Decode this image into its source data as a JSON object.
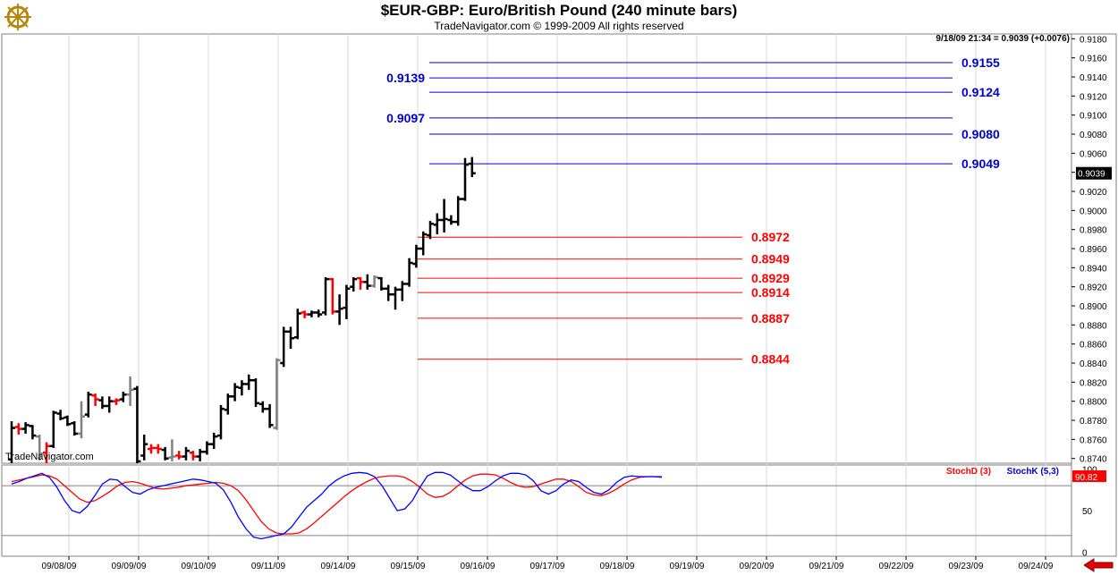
{
  "header": {
    "title": "$EUR-GBP:  Euro/British Pound  (240 minute bars)",
    "subtitle": "TradeNavigator.com © 1999-2009 All rights reserved",
    "readout": "9/18/09 21:34 = 0.9039 (+0.0076)",
    "watermark": "TradeNavigator.com",
    "last_price_label": "0.9039"
  },
  "colors": {
    "up_bar": "#000000",
    "inside_bar": "#ff0000",
    "neutral_bar": "#808080",
    "fib_extension": "#0000cc",
    "retracement": "#ff0000",
    "stochK": "#0000ff",
    "stochD": "#ff0000"
  },
  "chart_data": [
    {
      "type": "ohlc",
      "title": "$EUR-GBP:  Euro/British Pound  (240 minute bars)",
      "ylim": [
        0.8735,
        0.9185
      ],
      "y_ticks": [
        "0.9180",
        "0.9160",
        "0.9140",
        "0.9120",
        "0.9100",
        "0.9080",
        "0.9060",
        "0.9040",
        "0.9020",
        "0.9000",
        "0.8980",
        "0.8960",
        "0.8940",
        "0.8920",
        "0.8900",
        "0.8880",
        "0.8860",
        "0.8840",
        "0.8820",
        "0.8800",
        "0.8780",
        "0.8760",
        "0.8740"
      ],
      "x_labels": [
        "09/08/09",
        "09/09/09",
        "09/10/09",
        "09/11/09",
        "09/14/09",
        "09/15/09",
        "09/16/09",
        "09/17/09",
        "09/18/09",
        "09/19/09",
        "09/20/09",
        "09/21/09",
        "09/22/09",
        "09/23/09",
        "09/24/09"
      ],
      "bar_colors": {
        "b": "up_bar",
        "r": "inside_bar",
        "g": "neutral_bar"
      },
      "bars": [
        {
          "o": 0.8739,
          "h": 0.8779,
          "l": 0.8733,
          "c": 0.8772,
          "k": "b"
        },
        {
          "o": 0.8773,
          "h": 0.8777,
          "l": 0.8765,
          "c": 0.8771,
          "k": "r"
        },
        {
          "o": 0.8771,
          "h": 0.8778,
          "l": 0.8766,
          "c": 0.8775,
          "k": "b"
        },
        {
          "o": 0.8774,
          "h": 0.8775,
          "l": 0.876,
          "c": 0.8764,
          "k": "b"
        },
        {
          "o": 0.8763,
          "h": 0.8765,
          "l": 0.8738,
          "c": 0.8745,
          "k": "g"
        },
        {
          "o": 0.8746,
          "h": 0.8757,
          "l": 0.8733,
          "c": 0.8753,
          "k": "r"
        },
        {
          "o": 0.8753,
          "h": 0.879,
          "l": 0.8751,
          "c": 0.8788,
          "k": "b"
        },
        {
          "o": 0.8787,
          "h": 0.8791,
          "l": 0.878,
          "c": 0.8782,
          "k": "b"
        },
        {
          "o": 0.8783,
          "h": 0.8785,
          "l": 0.8774,
          "c": 0.8776,
          "k": "b"
        },
        {
          "o": 0.8777,
          "h": 0.8779,
          "l": 0.8764,
          "c": 0.8766,
          "k": "b"
        },
        {
          "o": 0.8766,
          "h": 0.88,
          "l": 0.8761,
          "c": 0.8784,
          "k": "g"
        },
        {
          "o": 0.8786,
          "h": 0.881,
          "l": 0.8783,
          "c": 0.8807,
          "k": "b"
        },
        {
          "o": 0.8806,
          "h": 0.8808,
          "l": 0.8795,
          "c": 0.8802,
          "k": "r"
        },
        {
          "o": 0.8801,
          "h": 0.8805,
          "l": 0.8792,
          "c": 0.8795,
          "k": "b"
        },
        {
          "o": 0.8795,
          "h": 0.8805,
          "l": 0.8788,
          "c": 0.88,
          "k": "b"
        },
        {
          "o": 0.88,
          "h": 0.8803,
          "l": 0.8796,
          "c": 0.8801,
          "k": "r"
        },
        {
          "o": 0.8802,
          "h": 0.881,
          "l": 0.8799,
          "c": 0.8807,
          "k": "b"
        },
        {
          "o": 0.8807,
          "h": 0.8826,
          "l": 0.8795,
          "c": 0.8812,
          "k": "g"
        },
        {
          "o": 0.8813,
          "h": 0.8816,
          "l": 0.8735,
          "c": 0.8737,
          "k": "b"
        },
        {
          "o": 0.8743,
          "h": 0.8765,
          "l": 0.8738,
          "c": 0.8755,
          "k": "b"
        },
        {
          "o": 0.875,
          "h": 0.8755,
          "l": 0.8745,
          "c": 0.8751,
          "k": "r"
        },
        {
          "o": 0.8751,
          "h": 0.8755,
          "l": 0.8745,
          "c": 0.875,
          "k": "r"
        },
        {
          "o": 0.8749,
          "h": 0.8752,
          "l": 0.8738,
          "c": 0.874,
          "k": "b"
        },
        {
          "o": 0.8741,
          "h": 0.876,
          "l": 0.8737,
          "c": 0.8742,
          "k": "g"
        },
        {
          "o": 0.8743,
          "h": 0.8748,
          "l": 0.8739,
          "c": 0.8742,
          "k": "r"
        },
        {
          "o": 0.8742,
          "h": 0.8752,
          "l": 0.8738,
          "c": 0.8748,
          "k": "b"
        },
        {
          "o": 0.8746,
          "h": 0.8748,
          "l": 0.8738,
          "c": 0.8742,
          "k": "r"
        },
        {
          "o": 0.8742,
          "h": 0.875,
          "l": 0.8737,
          "c": 0.8747,
          "k": "b"
        },
        {
          "o": 0.8747,
          "h": 0.8758,
          "l": 0.8744,
          "c": 0.8755,
          "k": "b"
        },
        {
          "o": 0.8755,
          "h": 0.8767,
          "l": 0.875,
          "c": 0.8763,
          "k": "b"
        },
        {
          "o": 0.8764,
          "h": 0.8796,
          "l": 0.876,
          "c": 0.8792,
          "k": "b"
        },
        {
          "o": 0.8791,
          "h": 0.8808,
          "l": 0.8786,
          "c": 0.8805,
          "k": "b"
        },
        {
          "o": 0.8805,
          "h": 0.8819,
          "l": 0.88,
          "c": 0.8815,
          "k": "b"
        },
        {
          "o": 0.8814,
          "h": 0.8822,
          "l": 0.8806,
          "c": 0.8818,
          "k": "b"
        },
        {
          "o": 0.8818,
          "h": 0.8828,
          "l": 0.8812,
          "c": 0.8822,
          "k": "b"
        },
        {
          "o": 0.8822,
          "h": 0.8824,
          "l": 0.8794,
          "c": 0.8798,
          "k": "b"
        },
        {
          "o": 0.8797,
          "h": 0.88,
          "l": 0.8788,
          "c": 0.8792,
          "k": "b"
        },
        {
          "o": 0.8792,
          "h": 0.8797,
          "l": 0.8772,
          "c": 0.8775,
          "k": "b"
        },
        {
          "o": 0.8772,
          "h": 0.8845,
          "l": 0.877,
          "c": 0.8843,
          "k": "g"
        },
        {
          "o": 0.884,
          "h": 0.8878,
          "l": 0.8836,
          "c": 0.8873,
          "k": "b"
        },
        {
          "o": 0.8873,
          "h": 0.8878,
          "l": 0.8855,
          "c": 0.8866,
          "k": "b"
        },
        {
          "o": 0.8867,
          "h": 0.8897,
          "l": 0.8865,
          "c": 0.8892,
          "k": "b"
        },
        {
          "o": 0.8893,
          "h": 0.8895,
          "l": 0.8887,
          "c": 0.8891,
          "k": "r"
        },
        {
          "o": 0.8891,
          "h": 0.8895,
          "l": 0.8888,
          "c": 0.8893,
          "k": "b"
        },
        {
          "o": 0.8893,
          "h": 0.8896,
          "l": 0.8888,
          "c": 0.8891,
          "k": "b"
        },
        {
          "o": 0.8893,
          "h": 0.893,
          "l": 0.889,
          "c": 0.8928,
          "k": "b"
        },
        {
          "o": 0.8928,
          "h": 0.8929,
          "l": 0.8891,
          "c": 0.8894,
          "k": "r"
        },
        {
          "o": 0.8894,
          "h": 0.8912,
          "l": 0.888,
          "c": 0.8897,
          "k": "b"
        },
        {
          "o": 0.8898,
          "h": 0.8922,
          "l": 0.8886,
          "c": 0.8918,
          "k": "b"
        },
        {
          "o": 0.892,
          "h": 0.893,
          "l": 0.8915,
          "c": 0.8928,
          "k": "b"
        },
        {
          "o": 0.8929,
          "h": 0.893,
          "l": 0.8917,
          "c": 0.8925,
          "k": "r"
        },
        {
          "o": 0.8925,
          "h": 0.8933,
          "l": 0.8917,
          "c": 0.8921,
          "k": "b"
        },
        {
          "o": 0.8921,
          "h": 0.8932,
          "l": 0.8919,
          "c": 0.893,
          "k": "g"
        },
        {
          "o": 0.8929,
          "h": 0.893,
          "l": 0.8916,
          "c": 0.8918,
          "k": "b"
        },
        {
          "o": 0.8918,
          "h": 0.8922,
          "l": 0.8905,
          "c": 0.8912,
          "k": "b"
        },
        {
          "o": 0.8912,
          "h": 0.892,
          "l": 0.8896,
          "c": 0.8917,
          "k": "b"
        },
        {
          "o": 0.8917,
          "h": 0.8926,
          "l": 0.8905,
          "c": 0.8923,
          "k": "b"
        },
        {
          "o": 0.8923,
          "h": 0.895,
          "l": 0.892,
          "c": 0.8945,
          "k": "b"
        },
        {
          "o": 0.8944,
          "h": 0.8964,
          "l": 0.894,
          "c": 0.896,
          "k": "b"
        },
        {
          "o": 0.896,
          "h": 0.8978,
          "l": 0.8953,
          "c": 0.8975,
          "k": "b"
        },
        {
          "o": 0.8974,
          "h": 0.8989,
          "l": 0.897,
          "c": 0.8986,
          "k": "b"
        },
        {
          "o": 0.8985,
          "h": 0.8997,
          "l": 0.8975,
          "c": 0.899,
          "k": "b"
        },
        {
          "o": 0.899,
          "h": 0.9012,
          "l": 0.8977,
          "c": 0.8991,
          "k": "b"
        },
        {
          "o": 0.899,
          "h": 0.8995,
          "l": 0.8985,
          "c": 0.8988,
          "k": "b"
        },
        {
          "o": 0.8988,
          "h": 0.9015,
          "l": 0.8984,
          "c": 0.9012,
          "k": "b"
        },
        {
          "o": 0.9012,
          "h": 0.9055,
          "l": 0.901,
          "c": 0.9048,
          "k": "b"
        },
        {
          "o": 0.9049,
          "h": 0.9056,
          "l": 0.9035,
          "c": 0.9039,
          "k": "b"
        }
      ],
      "fib_levels": [
        {
          "value": 0.9155,
          "label": "0.9155",
          "side": "right",
          "color": "#0000cc"
        },
        {
          "value": 0.9139,
          "label": "0.9139",
          "side": "left",
          "color": "#0000cc"
        },
        {
          "value": 0.9124,
          "label": "0.9124",
          "side": "right",
          "color": "#0000cc"
        },
        {
          "value": 0.9097,
          "label": "0.9097",
          "side": "left",
          "color": "#0000cc"
        },
        {
          "value": 0.908,
          "label": "0.9080",
          "side": "right",
          "color": "#0000cc"
        },
        {
          "value": 0.9049,
          "label": "0.9049",
          "side": "right",
          "color": "#0000cc"
        },
        {
          "value": 0.8972,
          "label": "0.8972",
          "side": "right",
          "color": "#ff0000"
        },
        {
          "value": 0.8949,
          "label": "0.8949",
          "side": "right",
          "color": "#ff0000"
        },
        {
          "value": 0.8929,
          "label": "0.8929",
          "side": "right",
          "color": "#ff0000"
        },
        {
          "value": 0.8914,
          "label": "0.8914",
          "side": "right",
          "color": "#ff0000"
        },
        {
          "value": 0.8887,
          "label": "0.8887",
          "side": "right",
          "color": "#ff0000"
        },
        {
          "value": 0.8844,
          "label": "0.8844",
          "side": "right",
          "color": "#ff0000"
        }
      ],
      "last_price": 0.9039
    },
    {
      "type": "line",
      "ylim": [
        -5,
        105
      ],
      "y_ticks": [
        "100",
        "50",
        "0"
      ],
      "reference_lines": [
        80,
        20
      ],
      "legend": [
        "StochD (3)",
        "StochK (5,3)"
      ],
      "last_value_label": "90.82",
      "series": [
        {
          "name": "StochD (3)",
          "color": "#ff0000",
          "values": [
            85,
            87,
            89,
            91,
            93,
            92,
            88,
            80,
            72,
            64,
            60,
            62,
            67,
            73,
            80,
            84,
            85,
            83,
            80,
            77,
            76,
            77,
            78,
            80,
            81,
            82,
            83,
            84,
            83,
            80,
            74,
            63,
            50,
            37,
            28,
            23,
            22,
            22,
            23,
            28,
            35,
            43,
            51,
            59,
            67,
            74,
            80,
            85,
            89,
            91,
            92,
            92,
            90,
            85,
            78,
            70,
            66,
            67,
            72,
            80,
            87,
            92,
            94,
            94,
            93,
            89,
            84,
            80,
            78,
            79,
            82,
            85,
            88,
            88,
            85,
            79,
            72,
            69,
            68,
            71,
            76,
            82,
            87,
            90,
            91,
            91,
            90
          ]
        },
        {
          "name": "StochK (5,3)",
          "color": "#0000ff",
          "values": [
            82,
            85,
            89,
            92,
            95,
            90,
            78,
            62,
            50,
            47,
            55,
            68,
            82,
            88,
            87,
            79,
            72,
            70,
            75,
            78,
            80,
            82,
            84,
            86,
            88,
            87,
            85,
            83,
            75,
            60,
            42,
            28,
            18,
            16,
            18,
            20,
            22,
            30,
            42,
            54,
            62,
            70,
            80,
            87,
            92,
            95,
            96,
            95,
            91,
            80,
            65,
            50,
            52,
            62,
            78,
            92,
            96,
            96,
            93,
            86,
            79,
            74,
            74,
            79,
            86,
            92,
            95,
            95,
            93,
            86,
            74,
            70,
            74,
            82,
            87,
            85,
            78,
            72,
            70,
            75,
            84,
            90,
            92,
            91,
            91,
            91,
            91
          ]
        }
      ]
    }
  ],
  "ui": {
    "nav_arrow": "left-arrow-icon",
    "logo": "ship-wheel-logo-icon"
  }
}
